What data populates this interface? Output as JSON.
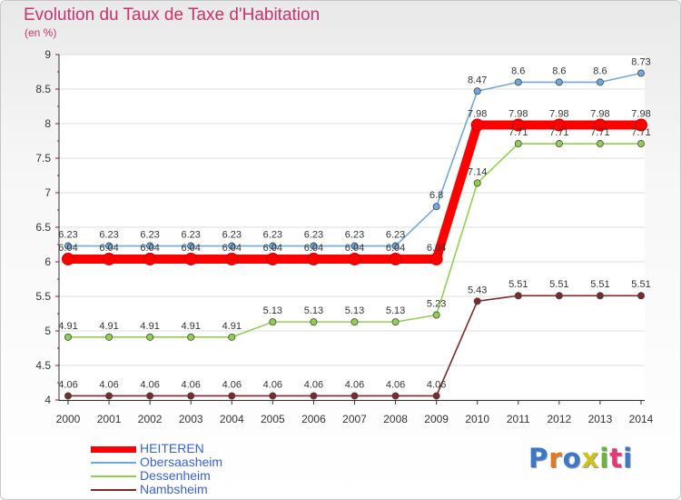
{
  "title": "Evolution du Taux de Taxe d'Habitation",
  "subtitle": "(en %)",
  "logo_text": "Proxiti",
  "chart_data": {
    "type": "line",
    "title": "Evolution du Taux de Taxe d'Habitation",
    "ylabel": "(en %)",
    "xlabel": "",
    "categories": [
      "2000",
      "2001",
      "2002",
      "2003",
      "2004",
      "2005",
      "2006",
      "2007",
      "2008",
      "2009",
      "2010",
      "2011",
      "2012",
      "2013",
      "2014"
    ],
    "ylim": [
      4,
      9
    ],
    "yticks": [
      4,
      4.5,
      5,
      5.5,
      6,
      6.5,
      7,
      7.5,
      8,
      8.5,
      9
    ],
    "ytick_labels": [
      "4",
      "4.5",
      "5",
      "5.5",
      "6",
      "6.5",
      "7",
      "7.5",
      "8",
      "8.5",
      "9"
    ],
    "grid": true,
    "legend_position": "bottom-left",
    "series": [
      {
        "name": "HEITEREN",
        "color": "#ff0000",
        "values": [
          6.04,
          6.04,
          6.04,
          6.04,
          6.04,
          6.04,
          6.04,
          6.04,
          6.04,
          6.04,
          7.98,
          7.98,
          7.98,
          7.98,
          7.98
        ],
        "labels": [
          "6.04",
          "6.04",
          "6.04",
          "6.04",
          "6.04",
          "6.04",
          "6.04",
          "6.04",
          "6.04",
          "6.04",
          "7.98",
          "7.98",
          "7.98",
          "7.98",
          "7.98"
        ]
      },
      {
        "name": "Obersaasheim",
        "color": "#6fa8dc",
        "values": [
          6.23,
          6.23,
          6.23,
          6.23,
          6.23,
          6.23,
          6.23,
          6.23,
          6.23,
          6.8,
          8.47,
          8.6,
          8.6,
          8.6,
          8.73
        ],
        "labels": [
          "6.23",
          "6.23",
          "6.23",
          "6.23",
          "6.23",
          "6.23",
          "6.23",
          "6.23",
          "6.23",
          "6.8",
          "8.47",
          "8.6",
          "8.6",
          "8.6",
          "8.73"
        ]
      },
      {
        "name": "Dessenheim",
        "color": "#8fd14f",
        "values": [
          4.91,
          4.91,
          4.91,
          4.91,
          4.91,
          5.13,
          5.13,
          5.13,
          5.13,
          5.23,
          7.14,
          7.71,
          7.71,
          7.71,
          7.71
        ],
        "labels": [
          "4.91",
          "4.91",
          "4.91",
          "4.91",
          "4.91",
          "5.13",
          "5.13",
          "5.13",
          "5.13",
          "5.23",
          "7.14",
          "7.71",
          "7.71",
          "7.71",
          "7.71"
        ]
      },
      {
        "name": "Nambsheim",
        "color": "#7a2a2a",
        "values": [
          4.06,
          4.06,
          4.06,
          4.06,
          4.06,
          4.06,
          4.06,
          4.06,
          4.06,
          4.06,
          5.43,
          5.51,
          5.51,
          5.51,
          5.51
        ],
        "labels": [
          "4.06",
          "4.06",
          "4.06",
          "4.06",
          "4.06",
          "4.06",
          "4.06",
          "4.06",
          "4.06",
          "4.06",
          "5.43",
          "5.51",
          "5.51",
          "5.51",
          "5.51"
        ]
      }
    ]
  },
  "legend": [
    {
      "name": "HEITEREN",
      "color": "#ff0000"
    },
    {
      "name": "Obersaasheim",
      "color": "#6fa8dc"
    },
    {
      "name": "Dessenheim",
      "color": "#8fd14f"
    },
    {
      "name": "Nambsheim",
      "color": "#7a2a2a"
    }
  ]
}
